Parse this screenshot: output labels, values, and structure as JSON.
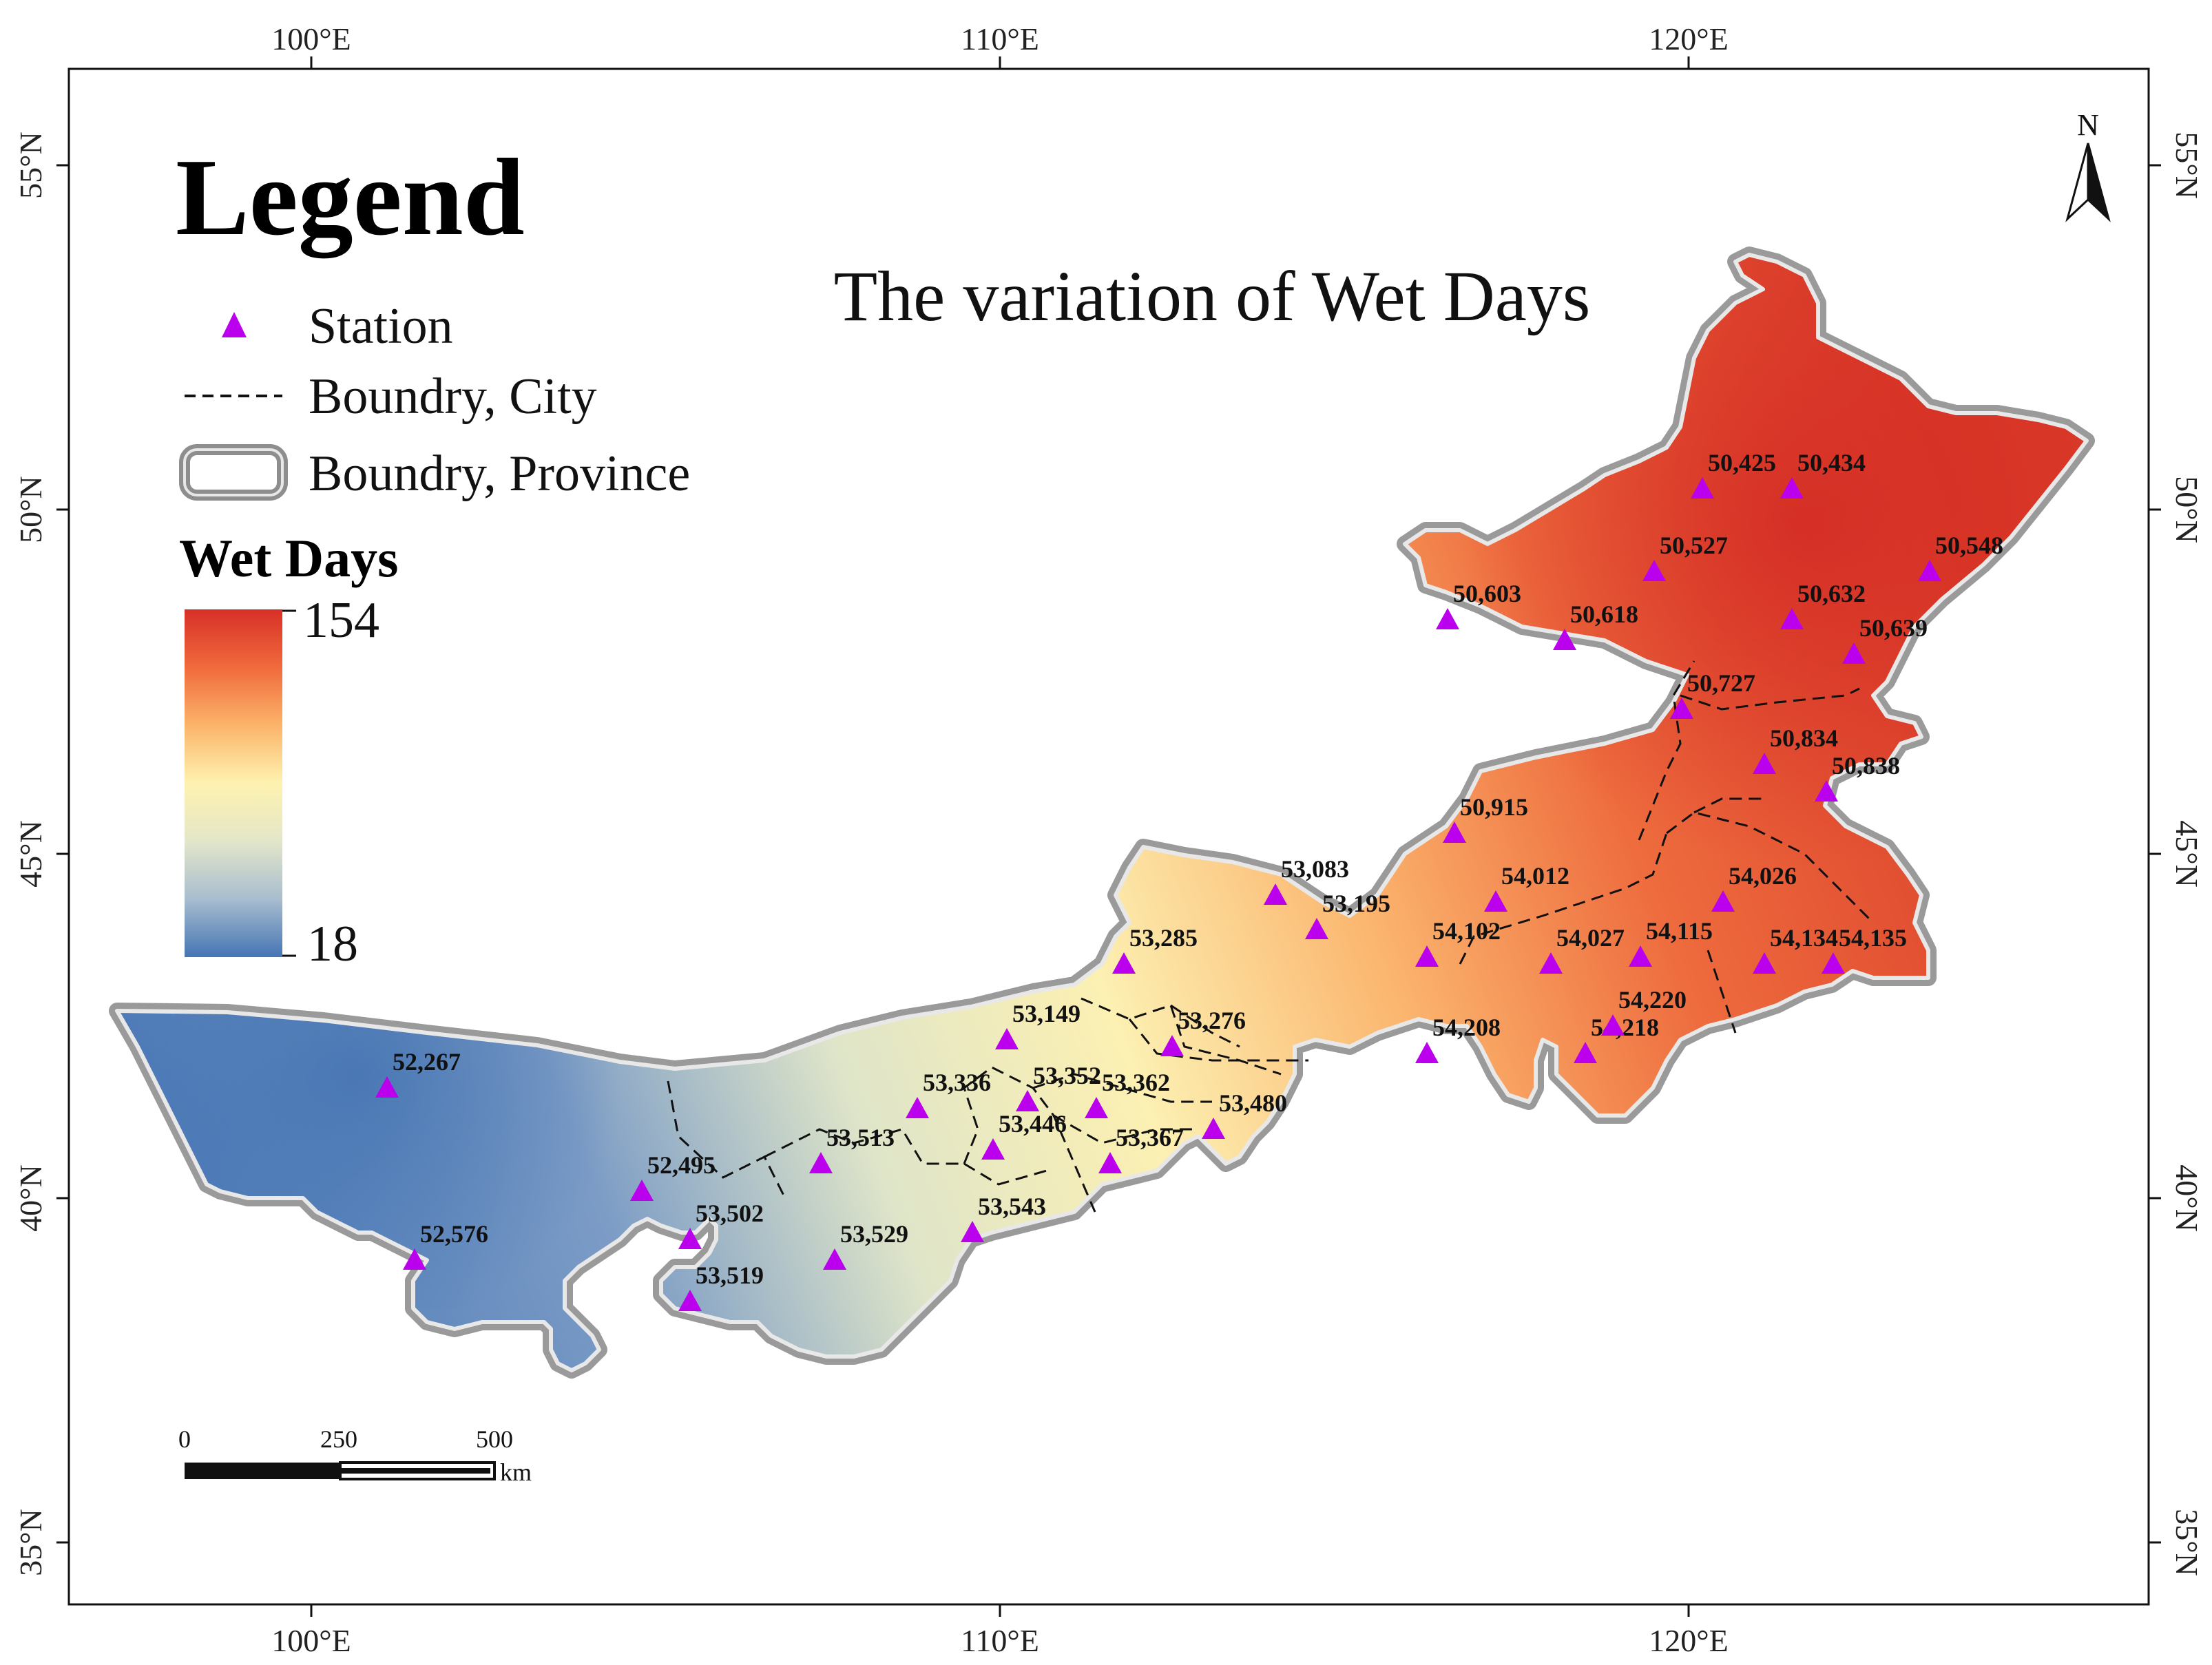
{
  "map": {
    "title": "The variation of Wet Days",
    "north_label": "N",
    "graticule": {
      "lon_labels": [
        "100°E",
        "110°E",
        "120°E"
      ],
      "lat_labels": [
        "55°N",
        "50°N",
        "45°N",
        "40°N",
        "35°N"
      ]
    }
  },
  "legend": {
    "title": "Legend",
    "items": [
      {
        "symbol": "station-triangle",
        "label": "Station"
      },
      {
        "symbol": "dashed-line",
        "label": "Boundry, City"
      },
      {
        "symbol": "gray-outline",
        "label": "Boundry, Province"
      }
    ],
    "ramp": {
      "title": "Wet Days",
      "max": "154",
      "min": "18",
      "colors": [
        "#d73027",
        "#f06a3c",
        "#fbb46a",
        "#fef2b0",
        "#e3e6c9",
        "#a8bdcf",
        "#4575b4"
      ]
    }
  },
  "scale_bar": {
    "ticks": [
      "0",
      "250",
      "500"
    ],
    "unit": "km"
  },
  "stations": [
    {
      "id": "50,425",
      "lon": 120.2,
      "lat": 50.3
    },
    {
      "id": "50,434",
      "lon": 121.5,
      "lat": 50.3
    },
    {
      "id": "50,527",
      "lon": 119.5,
      "lat": 49.1
    },
    {
      "id": "50,548",
      "lon": 123.5,
      "lat": 49.1
    },
    {
      "id": "50,603",
      "lon": 116.5,
      "lat": 48.4
    },
    {
      "id": "50,618",
      "lon": 118.2,
      "lat": 48.1
    },
    {
      "id": "50,632",
      "lon": 121.5,
      "lat": 48.4
    },
    {
      "id": "50,639",
      "lon": 122.4,
      "lat": 47.9
    },
    {
      "id": "50,727",
      "lon": 119.9,
      "lat": 47.1
    },
    {
      "id": "50,834",
      "lon": 121.1,
      "lat": 46.3
    },
    {
      "id": "50,838",
      "lon": 122.0,
      "lat": 45.9
    },
    {
      "id": "50,915",
      "lon": 116.6,
      "lat": 45.3
    },
    {
      "id": "53,083",
      "lon": 114.0,
      "lat": 44.4
    },
    {
      "id": "53,195",
      "lon": 114.6,
      "lat": 43.9
    },
    {
      "id": "54,012",
      "lon": 117.2,
      "lat": 44.3
    },
    {
      "id": "54,026",
      "lon": 120.5,
      "lat": 44.3
    },
    {
      "id": "54,102",
      "lon": 116.2,
      "lat": 43.5
    },
    {
      "id": "54,115",
      "lon": 119.3,
      "lat": 43.5
    },
    {
      "id": "54,027",
      "lon": 118.0,
      "lat": 43.4
    },
    {
      "id": "54,134",
      "lon": 121.1,
      "lat": 43.4
    },
    {
      "id": "54,135",
      "lon": 122.1,
      "lat": 43.4
    },
    {
      "id": "53,276",
      "lon": 112.5,
      "lat": 42.2
    },
    {
      "id": "54,208",
      "lon": 116.2,
      "lat": 42.1
    },
    {
      "id": "54,218",
      "lon": 118.5,
      "lat": 42.1
    },
    {
      "id": "54,220",
      "lon": 118.9,
      "lat": 42.5
    },
    {
      "id": "53,149",
      "lon": 110.1,
      "lat": 42.3
    },
    {
      "id": "53,352",
      "lon": 110.4,
      "lat": 41.4
    },
    {
      "id": "53,362",
      "lon": 111.4,
      "lat": 41.3
    },
    {
      "id": "53,336",
      "lon": 108.8,
      "lat": 41.3
    },
    {
      "id": "53,480",
      "lon": 113.1,
      "lat": 41.0
    },
    {
      "id": "53,446",
      "lon": 109.9,
      "lat": 40.7
    },
    {
      "id": "53,367",
      "lon": 111.6,
      "lat": 40.5
    },
    {
      "id": "53,513",
      "lon": 107.4,
      "lat": 40.5
    },
    {
      "id": "53,543",
      "lon": 109.6,
      "lat": 39.5
    },
    {
      "id": "53,529",
      "lon": 107.6,
      "lat": 39.1
    },
    {
      "id": "53,502",
      "lon": 105.5,
      "lat": 39.4
    },
    {
      "id": "53,519",
      "lon": 105.5,
      "lat": 38.5
    },
    {
      "id": "52,495",
      "lon": 104.8,
      "lat": 40.1
    },
    {
      "id": "52,267",
      "lon": 101.1,
      "lat": 41.6
    },
    {
      "id": "52,576",
      "lon": 101.5,
      "lat": 39.1
    },
    {
      "id": "53,285",
      "lon": 111.8,
      "lat": 43.4
    }
  ]
}
